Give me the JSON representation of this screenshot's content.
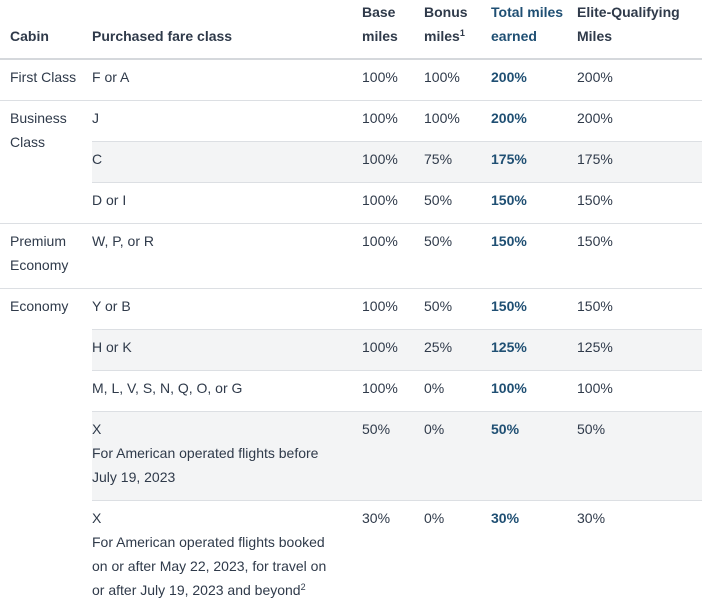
{
  "headers": {
    "cabin": "Cabin",
    "fare_class": "Purchased fare class",
    "base_miles_l1": "Base",
    "base_miles_l2": "miles",
    "bonus_miles_l1": "Bonus",
    "bonus_miles_l2": "miles",
    "bonus_sup": "1",
    "total_miles_l1": "Total miles",
    "total_miles_l2": "earned",
    "eqm_l1": "Elite-Qualifying",
    "eqm_l2": "Miles"
  },
  "cabins": {
    "first": "First Class",
    "business_l1": "Business",
    "business_l2": "Class",
    "premium_l1": "Premium",
    "premium_l2": "Economy",
    "economy": "Economy"
  },
  "rows": [
    {
      "fare": "F or A",
      "base": "100%",
      "bonus": "100%",
      "total": "200%",
      "eqm": "200%"
    },
    {
      "fare": "J",
      "base": "100%",
      "bonus": "100%",
      "total": "200%",
      "eqm": "200%"
    },
    {
      "fare": "C",
      "base": "100%",
      "bonus": "75%",
      "total": "175%",
      "eqm": "175%"
    },
    {
      "fare": "D or I",
      "base": "100%",
      "bonus": "50%",
      "total": "150%",
      "eqm": "150%"
    },
    {
      "fare": "W, P, or R",
      "base": "100%",
      "bonus": "50%",
      "total": "150%",
      "eqm": "150%"
    },
    {
      "fare": "Y or B",
      "base": "100%",
      "bonus": "50%",
      "total": "150%",
      "eqm": "150%"
    },
    {
      "fare": "H or K",
      "base": "100%",
      "bonus": "25%",
      "total": "125%",
      "eqm": "125%"
    },
    {
      "fare": "M, L, V, S, N, Q, O, or G",
      "base": "100%",
      "bonus": "0%",
      "total": "100%",
      "eqm": "100%"
    },
    {
      "fare": "X",
      "note_l1": "For American operated flights before",
      "note_l2": "July 19, 2023",
      "base": "50%",
      "bonus": "0%",
      "total": "50%",
      "eqm": "50%"
    },
    {
      "fare": "X",
      "note_l1": "For American operated flights booked",
      "note_l2": "on or after May 22, 2023, for travel on",
      "note_l3": "or after July 19, 2023 and beyond",
      "note_sup": "2",
      "base": "30%",
      "bonus": "0%",
      "total": "30%",
      "eqm": "30%"
    }
  ]
}
